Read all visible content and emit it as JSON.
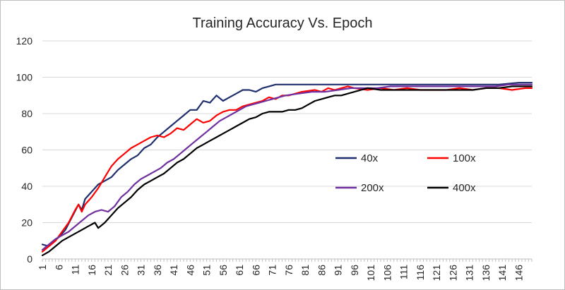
{
  "chart_data": {
    "type": "line",
    "title": "Training Accuracy Vs. Epoch",
    "xlabel": "",
    "ylabel": "",
    "ylim": [
      0,
      120
    ],
    "yticks": [
      0,
      20,
      40,
      60,
      80,
      100,
      120
    ],
    "xlim": [
      1,
      150
    ],
    "xticks": [
      1,
      6,
      11,
      16,
      21,
      26,
      31,
      36,
      41,
      46,
      51,
      56,
      61,
      66,
      71,
      76,
      81,
      86,
      91,
      96,
      101,
      106,
      111,
      116,
      121,
      126,
      131,
      136,
      141,
      146
    ],
    "grid": "horizontal",
    "legend": "inside-right",
    "series": [
      {
        "name": "40x",
        "color": "#1f2f6e",
        "points": [
          [
            1,
            8
          ],
          [
            3,
            7
          ],
          [
            6,
            12
          ],
          [
            8,
            16
          ],
          [
            10,
            23
          ],
          [
            12,
            30
          ],
          [
            13,
            27
          ],
          [
            14,
            33
          ],
          [
            16,
            37
          ],
          [
            18,
            41
          ],
          [
            20,
            43
          ],
          [
            22,
            45
          ],
          [
            24,
            49
          ],
          [
            26,
            52
          ],
          [
            28,
            55
          ],
          [
            30,
            57
          ],
          [
            32,
            61
          ],
          [
            34,
            63
          ],
          [
            36,
            67
          ],
          [
            38,
            70
          ],
          [
            40,
            73
          ],
          [
            42,
            76
          ],
          [
            44,
            79
          ],
          [
            46,
            82
          ],
          [
            48,
            82
          ],
          [
            50,
            87
          ],
          [
            52,
            86
          ],
          [
            54,
            90
          ],
          [
            56,
            87
          ],
          [
            58,
            89
          ],
          [
            60,
            91
          ],
          [
            62,
            93
          ],
          [
            64,
            93
          ],
          [
            66,
            92
          ],
          [
            68,
            94
          ],
          [
            70,
            95
          ],
          [
            72,
            96
          ],
          [
            76,
            96
          ],
          [
            80,
            96
          ],
          [
            86,
            96
          ],
          [
            90,
            96
          ],
          [
            96,
            96
          ],
          [
            100,
            96
          ],
          [
            106,
            96
          ],
          [
            110,
            96
          ],
          [
            116,
            96
          ],
          [
            120,
            96
          ],
          [
            126,
            96
          ],
          [
            130,
            96
          ],
          [
            136,
            96
          ],
          [
            140,
            96
          ],
          [
            146,
            97
          ],
          [
            150,
            97
          ]
        ]
      },
      {
        "name": "100x",
        "color": "#ff0000",
        "points": [
          [
            1,
            4
          ],
          [
            3,
            7
          ],
          [
            5,
            10
          ],
          [
            7,
            15
          ],
          [
            9,
            20
          ],
          [
            11,
            27
          ],
          [
            12,
            30
          ],
          [
            13,
            26
          ],
          [
            14,
            30
          ],
          [
            16,
            34
          ],
          [
            18,
            39
          ],
          [
            20,
            45
          ],
          [
            22,
            51
          ],
          [
            24,
            55
          ],
          [
            26,
            58
          ],
          [
            28,
            61
          ],
          [
            30,
            63
          ],
          [
            32,
            65
          ],
          [
            34,
            67
          ],
          [
            36,
            68
          ],
          [
            38,
            67
          ],
          [
            40,
            69
          ],
          [
            42,
            72
          ],
          [
            44,
            71
          ],
          [
            46,
            74
          ],
          [
            48,
            77
          ],
          [
            50,
            75
          ],
          [
            52,
            76
          ],
          [
            54,
            79
          ],
          [
            56,
            81
          ],
          [
            58,
            82
          ],
          [
            60,
            82
          ],
          [
            62,
            84
          ],
          [
            64,
            85
          ],
          [
            66,
            86
          ],
          [
            68,
            87
          ],
          [
            70,
            89
          ],
          [
            72,
            88
          ],
          [
            74,
            90
          ],
          [
            76,
            90
          ],
          [
            78,
            91
          ],
          [
            80,
            92
          ],
          [
            84,
            93
          ],
          [
            86,
            92
          ],
          [
            88,
            94
          ],
          [
            90,
            93
          ],
          [
            92,
            94
          ],
          [
            94,
            95
          ],
          [
            96,
            94
          ],
          [
            100,
            93
          ],
          [
            104,
            94
          ],
          [
            108,
            93
          ],
          [
            112,
            94
          ],
          [
            116,
            93
          ],
          [
            120,
            93
          ],
          [
            124,
            93
          ],
          [
            128,
            94
          ],
          [
            132,
            93
          ],
          [
            136,
            94
          ],
          [
            140,
            94
          ],
          [
            144,
            93
          ],
          [
            148,
            94
          ],
          [
            150,
            94
          ]
        ]
      },
      {
        "name": "200x",
        "color": "#7030a0",
        "points": [
          [
            1,
            5
          ],
          [
            3,
            8
          ],
          [
            5,
            11
          ],
          [
            7,
            13
          ],
          [
            9,
            15
          ],
          [
            11,
            18
          ],
          [
            13,
            21
          ],
          [
            15,
            24
          ],
          [
            17,
            26
          ],
          [
            19,
            27
          ],
          [
            21,
            26
          ],
          [
            23,
            29
          ],
          [
            25,
            34
          ],
          [
            27,
            37
          ],
          [
            29,
            41
          ],
          [
            31,
            44
          ],
          [
            33,
            46
          ],
          [
            35,
            48
          ],
          [
            37,
            50
          ],
          [
            39,
            53
          ],
          [
            41,
            55
          ],
          [
            43,
            58
          ],
          [
            45,
            61
          ],
          [
            47,
            64
          ],
          [
            49,
            67
          ],
          [
            51,
            70
          ],
          [
            53,
            73
          ],
          [
            55,
            76
          ],
          [
            57,
            78
          ],
          [
            59,
            80
          ],
          [
            61,
            82
          ],
          [
            63,
            84
          ],
          [
            65,
            85
          ],
          [
            67,
            86
          ],
          [
            69,
            87
          ],
          [
            71,
            88
          ],
          [
            75,
            90
          ],
          [
            79,
            91
          ],
          [
            83,
            92
          ],
          [
            87,
            92
          ],
          [
            91,
            93
          ],
          [
            95,
            94
          ],
          [
            99,
            94
          ],
          [
            103,
            94
          ],
          [
            107,
            95
          ],
          [
            111,
            95
          ],
          [
            115,
            95
          ],
          [
            119,
            95
          ],
          [
            123,
            95
          ],
          [
            127,
            95
          ],
          [
            131,
            95
          ],
          [
            135,
            95
          ],
          [
            139,
            95
          ],
          [
            143,
            96
          ],
          [
            147,
            96
          ],
          [
            150,
            96
          ]
        ]
      },
      {
        "name": "400x",
        "color": "#000000",
        "points": [
          [
            1,
            2
          ],
          [
            3,
            4
          ],
          [
            5,
            7
          ],
          [
            7,
            10
          ],
          [
            9,
            12
          ],
          [
            11,
            14
          ],
          [
            13,
            16
          ],
          [
            15,
            18
          ],
          [
            17,
            20
          ],
          [
            18,
            17
          ],
          [
            20,
            20
          ],
          [
            22,
            24
          ],
          [
            24,
            28
          ],
          [
            26,
            31
          ],
          [
            28,
            34
          ],
          [
            30,
            38
          ],
          [
            32,
            41
          ],
          [
            34,
            43
          ],
          [
            36,
            45
          ],
          [
            38,
            47
          ],
          [
            40,
            50
          ],
          [
            42,
            53
          ],
          [
            44,
            55
          ],
          [
            46,
            58
          ],
          [
            48,
            61
          ],
          [
            50,
            63
          ],
          [
            52,
            65
          ],
          [
            54,
            67
          ],
          [
            56,
            69
          ],
          [
            58,
            71
          ],
          [
            60,
            73
          ],
          [
            62,
            75
          ],
          [
            64,
            77
          ],
          [
            66,
            78
          ],
          [
            68,
            80
          ],
          [
            70,
            81
          ],
          [
            72,
            81
          ],
          [
            74,
            81
          ],
          [
            76,
            82
          ],
          [
            78,
            82
          ],
          [
            80,
            83
          ],
          [
            82,
            85
          ],
          [
            84,
            87
          ],
          [
            86,
            88
          ],
          [
            88,
            89
          ],
          [
            90,
            90
          ],
          [
            92,
            90
          ],
          [
            94,
            91
          ],
          [
            96,
            92
          ],
          [
            98,
            93
          ],
          [
            100,
            94
          ],
          [
            104,
            93
          ],
          [
            108,
            93
          ],
          [
            112,
            93
          ],
          [
            116,
            93
          ],
          [
            120,
            93
          ],
          [
            124,
            93
          ],
          [
            128,
            93
          ],
          [
            132,
            93
          ],
          [
            136,
            94
          ],
          [
            140,
            94
          ],
          [
            144,
            95
          ],
          [
            148,
            95
          ],
          [
            150,
            95
          ]
        ]
      }
    ]
  }
}
